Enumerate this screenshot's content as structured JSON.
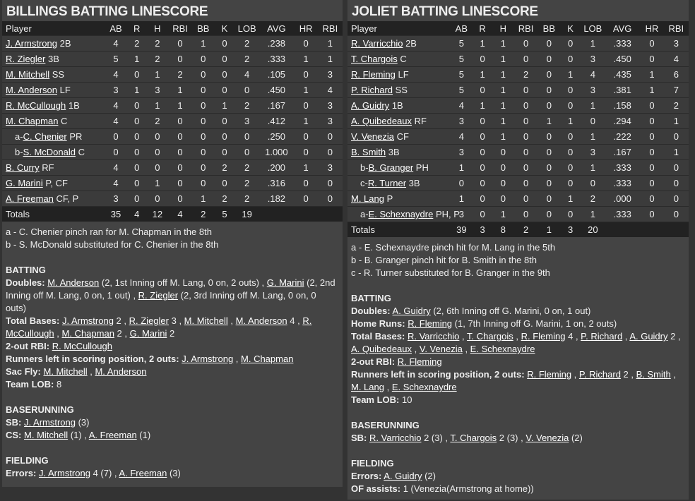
{
  "columns": [
    "Player",
    "AB",
    "R",
    "H",
    "RBI",
    "BB",
    "K",
    "LOB",
    "AVG",
    "HR",
    "RBI"
  ],
  "teams": [
    {
      "title": "BILLINGS BATTING LINESCORE",
      "rows": [
        {
          "prefix": "",
          "name": "J. Armstrong",
          "pos": "2B",
          "stats": [
            "4",
            "2",
            "2",
            "0",
            "1",
            "0",
            "2",
            ".238",
            "0",
            "1"
          ]
        },
        {
          "prefix": "",
          "name": "R. Ziegler",
          "pos": "3B",
          "stats": [
            "5",
            "1",
            "2",
            "0",
            "0",
            "0",
            "2",
            ".333",
            "1",
            "1"
          ]
        },
        {
          "prefix": "",
          "name": "M. Mitchell",
          "pos": "SS",
          "stats": [
            "4",
            "0",
            "1",
            "2",
            "0",
            "0",
            "4",
            ".105",
            "0",
            "3"
          ]
        },
        {
          "prefix": "",
          "name": "M. Anderson",
          "pos": "LF",
          "stats": [
            "3",
            "1",
            "3",
            "1",
            "0",
            "0",
            "0",
            ".450",
            "1",
            "4"
          ]
        },
        {
          "prefix": "",
          "name": "R. McCullough",
          "pos": "1B",
          "stats": [
            "4",
            "0",
            "1",
            "1",
            "0",
            "1",
            "2",
            ".167",
            "0",
            "3"
          ]
        },
        {
          "prefix": "",
          "name": "M. Chapman",
          "pos": "C",
          "stats": [
            "4",
            "0",
            "2",
            "0",
            "0",
            "0",
            "3",
            ".412",
            "1",
            "3"
          ]
        },
        {
          "prefix": "a-",
          "name": "C. Chenier",
          "pos": "PR",
          "stats": [
            "0",
            "0",
            "0",
            "0",
            "0",
            "0",
            "0",
            ".250",
            "0",
            "0"
          ]
        },
        {
          "prefix": "b-",
          "name": "S. McDonald",
          "pos": "C",
          "stats": [
            "0",
            "0",
            "0",
            "0",
            "0",
            "0",
            "0",
            "1.000",
            "0",
            "0"
          ]
        },
        {
          "prefix": "",
          "name": "B. Curry",
          "pos": "RF",
          "stats": [
            "4",
            "0",
            "0",
            "0",
            "0",
            "2",
            "2",
            ".200",
            "1",
            "3"
          ]
        },
        {
          "prefix": "",
          "name": "G. Marini",
          "pos": "P, CF",
          "stats": [
            "4",
            "0",
            "1",
            "0",
            "0",
            "0",
            "2",
            ".316",
            "0",
            "0"
          ]
        },
        {
          "prefix": "",
          "name": "A. Freeman",
          "pos": "CF, P",
          "stats": [
            "3",
            "0",
            "0",
            "0",
            "1",
            "2",
            "2",
            ".182",
            "0",
            "0"
          ]
        }
      ],
      "totals": {
        "label": "Totals",
        "stats": [
          "35",
          "4",
          "12",
          "4",
          "2",
          "5",
          "19",
          "",
          "",
          ""
        ]
      },
      "notes": [
        "a - C. Chenier pinch ran for M. Chapman in the 8th",
        "b - S. McDonald substituted for C. Chenier in the 8th"
      ],
      "sections": [
        {
          "title": "BATTING",
          "items": [
            {
              "label": "Doubles:",
              "parts": [
                {
                  "l": "M. Anderson"
                },
                {
                  "t": " (2, 1st Inning off M. Lang, 0 on, 2 outs) , "
                },
                {
                  "l": "G. Marini"
                },
                {
                  "t": " (2, 2nd Inning off M. Lang, 0 on, 1 out) , "
                },
                {
                  "l": "R. Ziegler"
                },
                {
                  "t": " (2, 3rd Inning off M. Lang, 0 on, 0 outs)"
                }
              ]
            },
            {
              "label": "Total Bases:",
              "parts": [
                {
                  "l": "J. Armstrong"
                },
                {
                  "t": " 2 , "
                },
                {
                  "l": "R. Ziegler"
                },
                {
                  "t": " 3 , "
                },
                {
                  "l": "M. Mitchell"
                },
                {
                  "t": " , "
                },
                {
                  "l": "M. Anderson"
                },
                {
                  "t": " 4 , "
                },
                {
                  "l": "R. McCullough"
                },
                {
                  "t": " , "
                },
                {
                  "l": "M. Chapman"
                },
                {
                  "t": " 2 , "
                },
                {
                  "l": "G. Marini"
                },
                {
                  "t": " 2"
                }
              ]
            },
            {
              "label": "2-out RBI:",
              "parts": [
                {
                  "l": "R. McCullough"
                }
              ]
            },
            {
              "label": "Runners left in scoring position, 2 outs:",
              "parts": [
                {
                  "l": "J. Armstrong"
                },
                {
                  "t": " , "
                },
                {
                  "l": "M. Chapman"
                }
              ]
            },
            {
              "label": "Sac Fly:",
              "parts": [
                {
                  "l": "M. Mitchell"
                },
                {
                  "t": " , "
                },
                {
                  "l": "M. Anderson"
                }
              ]
            },
            {
              "label": "Team LOB:",
              "parts": [
                {
                  "t": "8"
                }
              ]
            }
          ]
        },
        {
          "title": "BASERUNNING",
          "items": [
            {
              "label": "SB:",
              "parts": [
                {
                  "l": "J. Armstrong"
                },
                {
                  "t": " (3)"
                }
              ]
            },
            {
              "label": "CS:",
              "parts": [
                {
                  "l": "M. Mitchell"
                },
                {
                  "t": " (1) , "
                },
                {
                  "l": "A. Freeman"
                },
                {
                  "t": " (1)"
                }
              ]
            }
          ]
        },
        {
          "title": "FIELDING",
          "items": [
            {
              "label": "Errors:",
              "parts": [
                {
                  "l": "J. Armstrong"
                },
                {
                  "t": " 4 (7) , "
                },
                {
                  "l": "A. Freeman"
                },
                {
                  "t": " (3)"
                }
              ]
            }
          ]
        }
      ]
    },
    {
      "title": "JOLIET BATTING LINESCORE",
      "rows": [
        {
          "prefix": "",
          "name": "R. Varricchio",
          "pos": "2B",
          "stats": [
            "5",
            "1",
            "1",
            "0",
            "0",
            "0",
            "1",
            ".333",
            "0",
            "3"
          ]
        },
        {
          "prefix": "",
          "name": "T. Chargois",
          "pos": "C",
          "stats": [
            "5",
            "0",
            "1",
            "0",
            "0",
            "0",
            "3",
            ".450",
            "0",
            "4"
          ]
        },
        {
          "prefix": "",
          "name": "R. Fleming",
          "pos": "LF",
          "stats": [
            "5",
            "1",
            "1",
            "2",
            "0",
            "1",
            "4",
            ".435",
            "1",
            "6"
          ]
        },
        {
          "prefix": "",
          "name": "P. Richard",
          "pos": "SS",
          "stats": [
            "5",
            "0",
            "1",
            "0",
            "0",
            "0",
            "3",
            ".381",
            "1",
            "7"
          ]
        },
        {
          "prefix": "",
          "name": "A. Guidry",
          "pos": "1B",
          "stats": [
            "4",
            "1",
            "1",
            "0",
            "0",
            "0",
            "1",
            ".158",
            "0",
            "2"
          ]
        },
        {
          "prefix": "",
          "name": "A. Quibedeaux",
          "pos": "RF",
          "stats": [
            "3",
            "0",
            "1",
            "0",
            "1",
            "1",
            "0",
            ".294",
            "0",
            "1"
          ]
        },
        {
          "prefix": "",
          "name": "V. Venezia",
          "pos": "CF",
          "stats": [
            "4",
            "0",
            "1",
            "0",
            "0",
            "0",
            "1",
            ".222",
            "0",
            "0"
          ]
        },
        {
          "prefix": "",
          "name": "B. Smith",
          "pos": "3B",
          "stats": [
            "3",
            "0",
            "0",
            "0",
            "0",
            "0",
            "3",
            ".167",
            "0",
            "1"
          ]
        },
        {
          "prefix": "b-",
          "name": "B. Granger",
          "pos": "PH",
          "stats": [
            "1",
            "0",
            "0",
            "0",
            "0",
            "0",
            "1",
            ".333",
            "0",
            "0"
          ]
        },
        {
          "prefix": "c-",
          "name": "R. Turner",
          "pos": "3B",
          "stats": [
            "0",
            "0",
            "0",
            "0",
            "0",
            "0",
            "0",
            ".333",
            "0",
            "0"
          ]
        },
        {
          "prefix": "",
          "name": "M. Lang",
          "pos": "P",
          "stats": [
            "1",
            "0",
            "0",
            "0",
            "0",
            "1",
            "2",
            ".000",
            "0",
            "0"
          ]
        },
        {
          "prefix": "a-",
          "name": "E. Schexnaydre",
          "pos": "PH, P",
          "stats": [
            "3",
            "0",
            "1",
            "0",
            "0",
            "0",
            "1",
            ".333",
            "0",
            "0"
          ]
        }
      ],
      "totals": {
        "label": "Totals",
        "stats": [
          "39",
          "3",
          "8",
          "2",
          "1",
          "3",
          "20",
          "",
          "",
          ""
        ]
      },
      "notes": [
        "a - E. Schexnaydre pinch hit for M. Lang in the 5th",
        "b - B. Granger pinch hit for B. Smith in the 8th",
        "c - R. Turner substituted for B. Granger in the 9th"
      ],
      "sections": [
        {
          "title": "BATTING",
          "items": [
            {
              "label": "Doubles:",
              "parts": [
                {
                  "l": "A. Guidry"
                },
                {
                  "t": " (2, 6th Inning off G. Marini, 0 on, 1 out)"
                }
              ]
            },
            {
              "label": "Home Runs:",
              "parts": [
                {
                  "l": "R. Fleming"
                },
                {
                  "t": " (1, 7th Inning off G. Marini, 1 on, 2 outs)"
                }
              ]
            },
            {
              "label": "Total Bases:",
              "parts": [
                {
                  "l": "R. Varricchio"
                },
                {
                  "t": " , "
                },
                {
                  "l": "T. Chargois"
                },
                {
                  "t": " , "
                },
                {
                  "l": "R. Fleming"
                },
                {
                  "t": " 4 , "
                },
                {
                  "l": "P. Richard"
                },
                {
                  "t": " , "
                },
                {
                  "l": "A. Guidry"
                },
                {
                  "t": " 2 , "
                },
                {
                  "l": "A. Quibedeaux"
                },
                {
                  "t": " , "
                },
                {
                  "l": "V. Venezia"
                },
                {
                  "t": " , "
                },
                {
                  "l": "E. Schexnaydre"
                }
              ]
            },
            {
              "label": "2-out RBI:",
              "parts": [
                {
                  "l": "R. Fleming"
                }
              ]
            },
            {
              "label": "Runners left in scoring position, 2 outs:",
              "parts": [
                {
                  "l": "R. Fleming"
                },
                {
                  "t": " , "
                },
                {
                  "l": "P. Richard"
                },
                {
                  "t": " 2 , "
                },
                {
                  "l": "B. Smith"
                },
                {
                  "t": " , "
                },
                {
                  "l": "M. Lang"
                },
                {
                  "t": " , "
                },
                {
                  "l": "E. Schexnaydre"
                }
              ]
            },
            {
              "label": "Team LOB:",
              "parts": [
                {
                  "t": "10"
                }
              ]
            }
          ]
        },
        {
          "title": "BASERUNNING",
          "items": [
            {
              "label": "SB:",
              "parts": [
                {
                  "l": "R. Varricchio"
                },
                {
                  "t": " 2 (3) , "
                },
                {
                  "l": "T. Chargois"
                },
                {
                  "t": " 2 (3) , "
                },
                {
                  "l": "V. Venezia"
                },
                {
                  "t": " (2)"
                }
              ]
            }
          ]
        },
        {
          "title": "FIELDING",
          "items": [
            {
              "label": "Errors:",
              "parts": [
                {
                  "l": "A. Guidry"
                },
                {
                  "t": " (2)"
                }
              ]
            },
            {
              "label": "OF assists:",
              "parts": [
                {
                  "t": "1 (Venezia(Armstrong at home))"
                }
              ]
            }
          ]
        }
      ]
    }
  ]
}
